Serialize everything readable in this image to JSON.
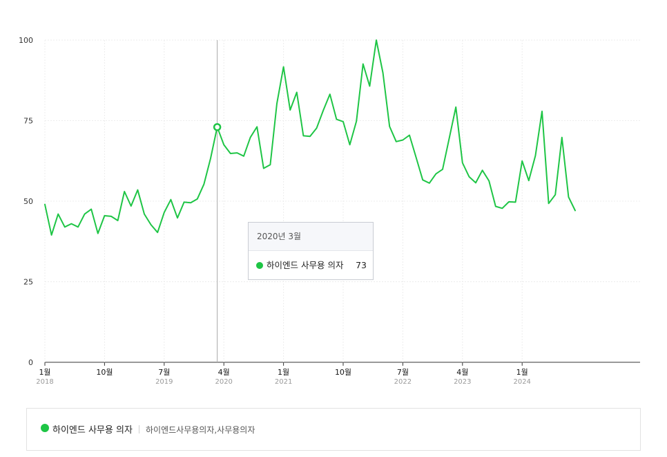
{
  "chart_data": {
    "type": "line",
    "title": "",
    "xlabel": "",
    "ylabel": "",
    "ylim": [
      0,
      100
    ],
    "yticks": [
      0,
      25,
      50,
      75,
      100
    ],
    "grid": true,
    "line_color": "#1ec545",
    "x_start": "2018-01",
    "x_tick_labels": [
      {
        "month_index": 0,
        "label": "1월",
        "year": "2018"
      },
      {
        "month_index": 9,
        "label": "10월",
        "year": ""
      },
      {
        "month_index": 18,
        "label": "7월",
        "year": "2019"
      },
      {
        "month_index": 27,
        "label": "4월",
        "year": "2020"
      },
      {
        "month_index": 36,
        "label": "1월",
        "year": "2021"
      },
      {
        "month_index": 45,
        "label": "10월",
        "year": ""
      },
      {
        "month_index": 54,
        "label": "7월",
        "year": "2022"
      },
      {
        "month_index": 63,
        "label": "4월",
        "year": "2023"
      },
      {
        "month_index": 72,
        "label": "1월",
        "year": "2024"
      }
    ],
    "series": [
      {
        "name": "하이엔드 사무용 의자",
        "values": [
          49,
          39.5,
          46,
          42,
          43,
          42,
          46,
          47.5,
          40,
          45.5,
          45.3,
          44,
          53,
          48.5,
          53.5,
          46,
          42.7,
          40.3,
          46.5,
          50.5,
          44.8,
          49.7,
          49.5,
          50.7,
          55.3,
          63.3,
          73,
          67.5,
          64.8,
          65,
          64,
          69.8,
          73.1,
          60.2,
          61.3,
          80.3,
          91.7,
          78.3,
          83.8,
          70.3,
          70.1,
          72.7,
          78.2,
          83.2,
          75.4,
          74.7,
          67.5,
          74.8,
          92.6,
          85.7,
          100,
          89.8,
          73.2,
          68.5,
          69,
          70.5,
          63.6,
          56.6,
          55.6,
          58.5,
          59.9,
          69.5,
          79.2,
          61.9,
          57.6,
          55.7,
          59.6,
          56.3,
          48.4,
          47.8,
          49.8,
          49.7,
          62.5,
          56.4,
          64.1,
          77.9,
          49.3,
          52,
          69.8,
          51.3,
          47.1
        ]
      }
    ],
    "highlight_index": 26
  },
  "tooltip": {
    "title": "2020년 3월",
    "series_name": "하이엔드 사무용 의자",
    "value": "73"
  },
  "legend": {
    "name": "하이엔드 사무용 의자",
    "keywords": "하이엔드사무용의자,사무용의자"
  }
}
